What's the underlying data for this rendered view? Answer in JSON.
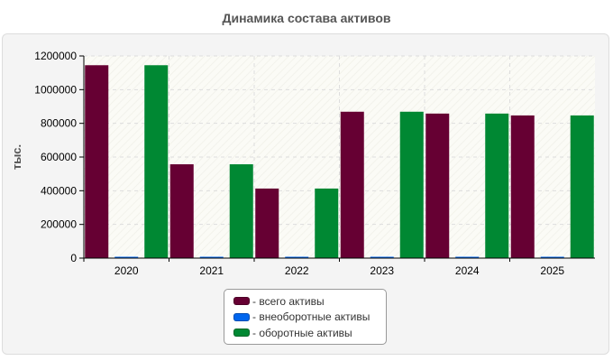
{
  "chart_data": {
    "type": "bar",
    "title": "Динамика состава активов",
    "ylabel": "тыс.",
    "xlabel": "",
    "categories": [
      "2020",
      "2021",
      "2022",
      "2023",
      "2024",
      "2025"
    ],
    "series": [
      {
        "name": "- всего активы",
        "color": "#660033",
        "values": [
          1145000,
          557000,
          413000,
          869000,
          858000,
          847000
        ]
      },
      {
        "name": "- внеоборотные активы",
        "color": "#0066ee",
        "values": [
          4000,
          4000,
          4000,
          4000,
          4000,
          4000
        ]
      },
      {
        "name": "- оборотные активы",
        "color": "#008833",
        "values": [
          1145000,
          557000,
          413000,
          869000,
          858000,
          847000
        ]
      }
    ],
    "ylim": [
      0,
      1200000
    ],
    "yticks": [
      "0",
      "200000",
      "400000",
      "600000",
      "800000",
      "1000000",
      "1200000"
    ],
    "grid": true,
    "legend_position": "bottom-center"
  }
}
